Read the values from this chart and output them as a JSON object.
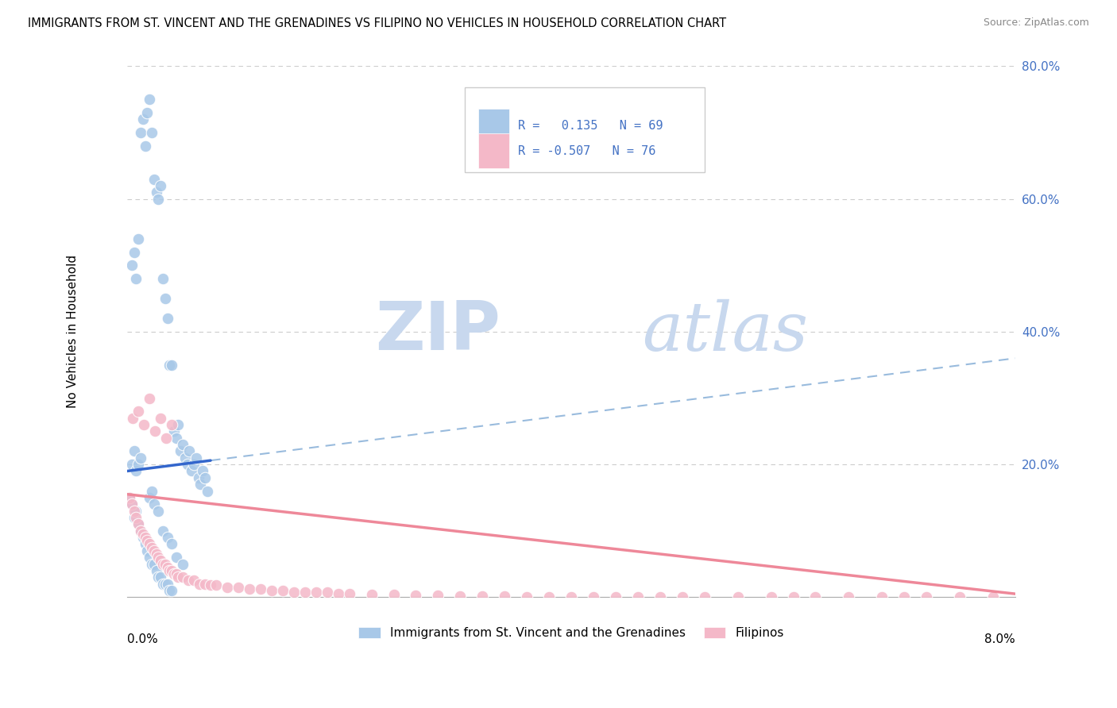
{
  "title": "IMMIGRANTS FROM ST. VINCENT AND THE GRENADINES VS FILIPINO NO VEHICLES IN HOUSEHOLD CORRELATION CHART",
  "source": "Source: ZipAtlas.com",
  "ylabel": "No Vehicles in Household",
  "xlim": [
    0.0,
    8.0
  ],
  "ylim": [
    0.0,
    80.0
  ],
  "color_blue": "#a8c8e8",
  "color_blue_line": "#3366cc",
  "color_blue_dash": "#99bbdd",
  "color_pink": "#f4b8c8",
  "color_pink_line": "#ee8899",
  "color_right_axis": "#4472c4",
  "color_grid": "#cccccc",
  "watermark_color": "#c8d8ee",
  "legend_label1": "Immigrants from St. Vincent and the Grenadines",
  "legend_label2": "Filipinos",
  "blue_x": [
    0.04,
    0.06,
    0.08,
    0.1,
    0.12,
    0.14,
    0.16,
    0.18,
    0.2,
    0.22,
    0.24,
    0.26,
    0.28,
    0.3,
    0.32,
    0.34,
    0.36,
    0.38,
    0.4,
    0.42,
    0.44,
    0.46,
    0.48,
    0.5,
    0.52,
    0.54,
    0.56,
    0.58,
    0.6,
    0.62,
    0.64,
    0.66,
    0.68,
    0.7,
    0.72,
    0.02,
    0.04,
    0.06,
    0.08,
    0.1,
    0.12,
    0.14,
    0.16,
    0.18,
    0.2,
    0.22,
    0.24,
    0.26,
    0.28,
    0.3,
    0.32,
    0.34,
    0.36,
    0.38,
    0.4,
    0.04,
    0.06,
    0.08,
    0.1,
    0.12,
    0.2,
    0.22,
    0.24,
    0.28,
    0.32,
    0.36,
    0.4,
    0.44,
    0.5
  ],
  "blue_y": [
    50.0,
    52.0,
    48.0,
    54.0,
    70.0,
    72.0,
    68.0,
    73.0,
    75.0,
    70.0,
    63.0,
    61.0,
    60.0,
    62.0,
    48.0,
    45.0,
    42.0,
    35.0,
    35.0,
    25.0,
    24.0,
    26.0,
    22.0,
    23.0,
    21.0,
    20.0,
    22.0,
    19.0,
    20.0,
    21.0,
    18.0,
    17.0,
    19.0,
    18.0,
    16.0,
    15.0,
    14.0,
    12.0,
    13.0,
    11.0,
    10.0,
    9.0,
    8.0,
    7.0,
    6.0,
    5.0,
    5.0,
    4.0,
    3.0,
    3.0,
    2.0,
    2.0,
    2.0,
    1.0,
    1.0,
    20.0,
    22.0,
    19.0,
    20.0,
    21.0,
    15.0,
    16.0,
    14.0,
    13.0,
    10.0,
    9.0,
    8.0,
    6.0,
    5.0
  ],
  "pink_x": [
    0.02,
    0.04,
    0.06,
    0.08,
    0.1,
    0.12,
    0.14,
    0.16,
    0.18,
    0.2,
    0.22,
    0.24,
    0.26,
    0.28,
    0.3,
    0.32,
    0.34,
    0.36,
    0.38,
    0.4,
    0.42,
    0.44,
    0.46,
    0.5,
    0.55,
    0.6,
    0.65,
    0.7,
    0.75,
    0.8,
    0.9,
    1.0,
    1.1,
    1.2,
    1.3,
    1.4,
    1.5,
    1.6,
    1.7,
    1.8,
    1.9,
    2.0,
    2.2,
    2.4,
    2.6,
    2.8,
    3.0,
    3.2,
    3.4,
    3.6,
    3.8,
    4.0,
    4.2,
    4.4,
    4.6,
    4.8,
    5.0,
    5.2,
    5.5,
    5.8,
    6.0,
    6.2,
    6.5,
    6.8,
    7.0,
    7.2,
    7.5,
    7.8,
    0.05,
    0.1,
    0.15,
    0.2,
    0.25,
    0.3,
    0.35,
    0.4
  ],
  "pink_y": [
    15.0,
    14.0,
    13.0,
    12.0,
    11.0,
    10.0,
    9.5,
    9.0,
    8.5,
    8.0,
    7.5,
    7.0,
    6.5,
    6.0,
    5.5,
    5.0,
    5.0,
    4.5,
    4.0,
    4.0,
    3.5,
    3.5,
    3.0,
    3.0,
    2.5,
    2.5,
    2.0,
    2.0,
    1.8,
    1.8,
    1.5,
    1.5,
    1.2,
    1.2,
    1.0,
    1.0,
    0.8,
    0.8,
    0.7,
    0.7,
    0.5,
    0.5,
    0.4,
    0.4,
    0.3,
    0.3,
    0.2,
    0.2,
    0.2,
    0.1,
    0.1,
    0.1,
    0.1,
    0.1,
    0.1,
    0.1,
    0.05,
    0.05,
    0.05,
    0.05,
    0.05,
    0.05,
    0.05,
    0.05,
    0.05,
    0.05,
    0.05,
    0.05,
    27.0,
    28.0,
    26.0,
    30.0,
    25.0,
    27.0,
    24.0,
    26.0
  ],
  "blue_trend_x": [
    0.0,
    8.0
  ],
  "blue_trend_y": [
    19.0,
    36.0
  ],
  "blue_solid_end": 0.75,
  "pink_trend_x": [
    0.0,
    8.0
  ],
  "pink_trend_y": [
    15.5,
    0.5
  ]
}
